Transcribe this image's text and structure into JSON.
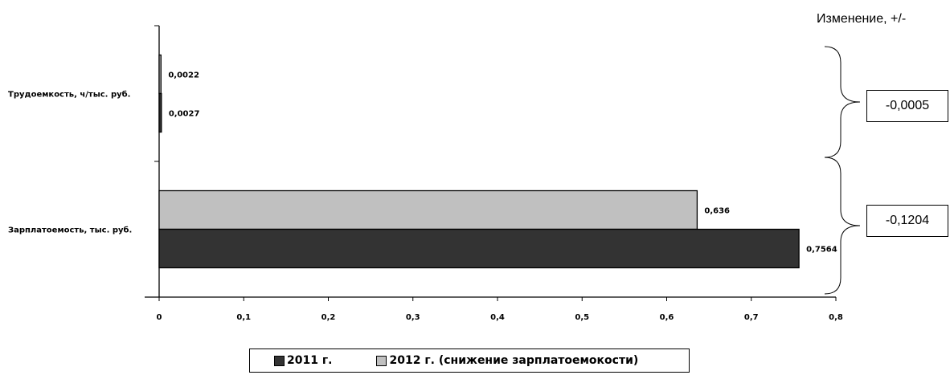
{
  "chart_data": {
    "type": "bar",
    "orientation": "horizontal",
    "categories": [
      "Трудоемкость, ч/тыс. руб.",
      "Зарплатоемость, тыс. руб."
    ],
    "series": [
      {
        "name": "2011 г.",
        "values": [
          0.0027,
          0.7564
        ],
        "labels": [
          "0,0027",
          "0,7564"
        ],
        "color": "#333333"
      },
      {
        "name": "2012 г. (снижение зарплатоемокости)",
        "values": [
          0.0022,
          0.636
        ],
        "labels": [
          "0,0022",
          "0,636"
        ],
        "color": "#c0c0c0"
      }
    ],
    "xticks": [
      "0",
      "0,1",
      "0,2",
      "0,3",
      "0,4",
      "0,5",
      "0,6",
      "0,7",
      "0,8"
    ],
    "xlim": [
      0,
      0.8
    ],
    "grid": false,
    "legend_position": "bottom",
    "change_title": "Изменение, +/-",
    "changes": [
      "-0,0005",
      "-0,1204"
    ]
  }
}
